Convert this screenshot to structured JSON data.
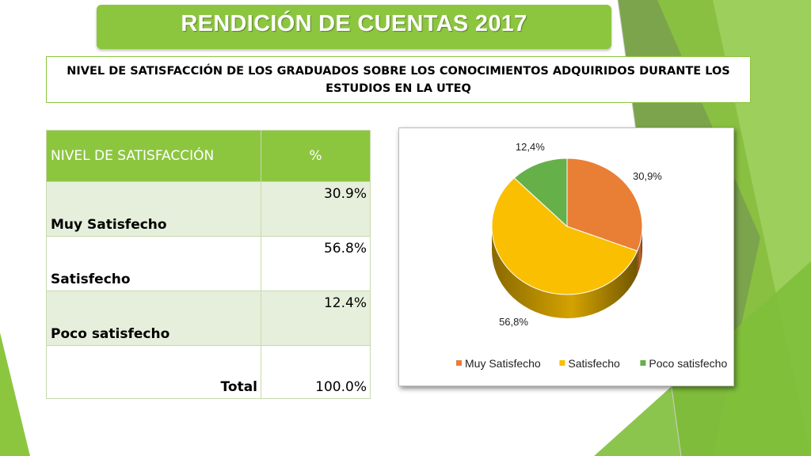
{
  "slide": {
    "title": "RENDICIÓN DE CUENTAS 2017",
    "subtitle": "NIVEL DE SATISFACCIÓN DE LOS GRADUADOS SOBRE LOS CONOCIMIENTOS ADQUIRIDOS DURANTE LOS ESTUDIOS EN LA UTEQ"
  },
  "table": {
    "header_level": "NIVEL DE SATISFACCIÓN",
    "header_pct": "%",
    "rows": [
      {
        "label": "Muy Satisfecho",
        "value": "30.9%"
      },
      {
        "label": "Satisfecho",
        "value": "56.8%"
      },
      {
        "label": "Poco satisfecho",
        "value": "12.4%"
      }
    ],
    "total_label": "Total",
    "total_value": "100.0%"
  },
  "colors": {
    "brand_green": "#8cc63f",
    "muy_satisfecho": "#e97f35",
    "satisfecho": "#f9bf00",
    "poco_satisfecho": "#66b04a"
  },
  "chart_data": {
    "type": "pie",
    "style": "3d",
    "categories": [
      "Muy Satisfecho",
      "Satisfecho",
      "Poco satisfecho"
    ],
    "values": [
      30.9,
      56.8,
      12.4
    ],
    "data_labels": [
      "30,9%",
      "56,8%",
      "12,4%"
    ],
    "colors": [
      "#e97f35",
      "#f9bf00",
      "#66b04a"
    ],
    "legend_position": "bottom",
    "title": ""
  }
}
